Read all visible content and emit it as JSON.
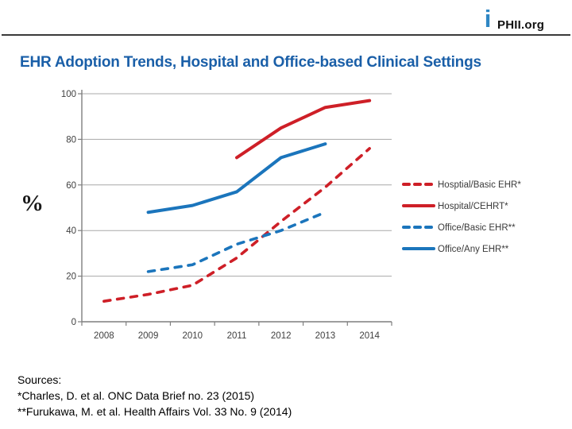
{
  "header": {
    "logo_icon_glyph": "i",
    "logo_text": "PHII.org"
  },
  "title": "EHR Adoption Trends, Hospital and Office-based Clinical Settings",
  "ylabel": "%",
  "colors": {
    "title_blue": "#1A5FA8",
    "logo_blue": "#2F87C4",
    "series_red": "#CE1F27",
    "series_blue": "#1B75BC",
    "grid_gray": "#A8A8A8",
    "axis_gray": "#7F7F7F",
    "tick_label_gray": "#404040",
    "legend_text_gray": "#3A3A3A"
  },
  "chart_data": {
    "type": "line",
    "title": "",
    "xlabel": "",
    "ylabel": "%",
    "x": [
      2008,
      2009,
      2010,
      2011,
      2012,
      2013,
      2014
    ],
    "ylim": [
      0,
      100
    ],
    "yticks": [
      0,
      20,
      40,
      60,
      80,
      100
    ],
    "grid": true,
    "legend_position": "right",
    "series": [
      {
        "name": "Hosptial/Basic EHR*",
        "color": "#CE1F27",
        "style": "dashed",
        "x": [
          2008,
          2009,
          2010,
          2011,
          2012,
          2013,
          2014
        ],
        "values": [
          9,
          12,
          16,
          28,
          44,
          59,
          76
        ]
      },
      {
        "name": "Hospital/CEHRT*",
        "color": "#CE1F27",
        "style": "solid",
        "x": [
          2011,
          2012,
          2013,
          2014
        ],
        "values": [
          72,
          85,
          94,
          97
        ]
      },
      {
        "name": "Office/Basic EHR**",
        "color": "#1B75BC",
        "style": "dashed",
        "x": [
          2009,
          2010,
          2011,
          2012,
          2013
        ],
        "values": [
          22,
          25,
          34,
          40,
          48
        ]
      },
      {
        "name": "Office/Any EHR**",
        "color": "#1B75BC",
        "style": "solid",
        "x": [
          2009,
          2010,
          2011,
          2012,
          2013
        ],
        "values": [
          48,
          51,
          57,
          72,
          78
        ]
      }
    ]
  },
  "sources": {
    "lines": [
      "Sources:",
      "*Charles, D. et al. ONC Data Brief no. 23 (2015)",
      "**Furukawa, M. et al. Health Affairs Vol. 33 No. 9 (2014)"
    ]
  }
}
